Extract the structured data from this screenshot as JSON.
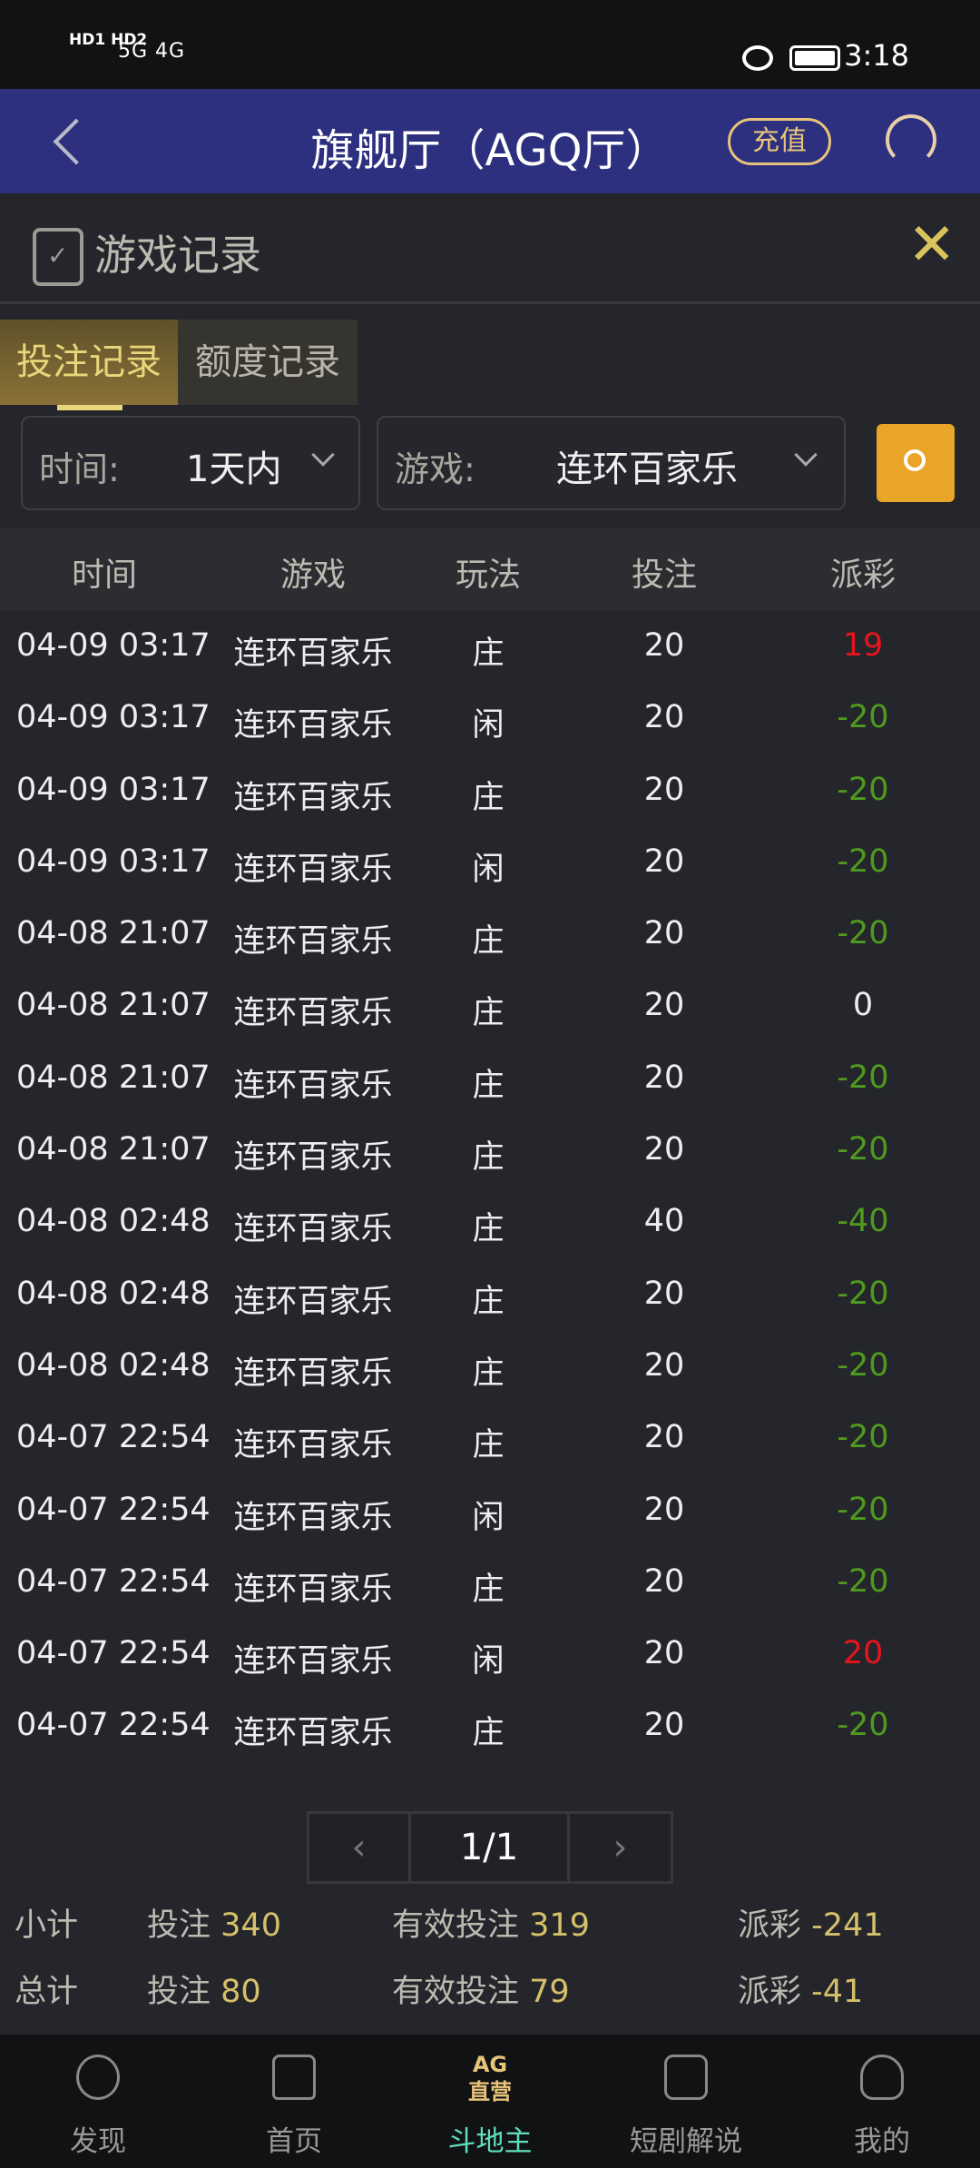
{
  "status_bar": {
    "signal_text": "HD1 HD2",
    "network": "5G 4G",
    "time": "3:18"
  },
  "header": {
    "title": "旗舰厅（AGQ厅）",
    "recharge_label": "充值",
    "icons": [
      "back-icon",
      "headset-icon"
    ]
  },
  "panel": {
    "title": "游戏记录",
    "close_icon": "close-icon"
  },
  "tabs": [
    {
      "label": "投注记录",
      "active": true
    },
    {
      "label": "额度记录",
      "active": false
    }
  ],
  "filters": {
    "time_label": "时间:",
    "time_value": "1天内",
    "game_label": "游戏:",
    "game_value": "连环百家乐"
  },
  "table": {
    "columns": [
      "时间",
      "游戏",
      "玩法",
      "投注",
      "派彩"
    ],
    "rows": [
      [
        "04-09 03:17",
        "连环百家乐",
        "庄",
        "20",
        "19"
      ],
      [
        "04-09 03:17",
        "连环百家乐",
        "闲",
        "20",
        "-20"
      ],
      [
        "04-09 03:17",
        "连环百家乐",
        "庄",
        "20",
        "-20"
      ],
      [
        "04-09 03:17",
        "连环百家乐",
        "闲",
        "20",
        "-20"
      ],
      [
        "04-08 21:07",
        "连环百家乐",
        "庄",
        "20",
        "-20"
      ],
      [
        "04-08 21:07",
        "连环百家乐",
        "庄",
        "20",
        "0"
      ],
      [
        "04-08 21:07",
        "连环百家乐",
        "庄",
        "20",
        "-20"
      ],
      [
        "04-08 21:07",
        "连环百家乐",
        "庄",
        "20",
        "-20"
      ],
      [
        "04-08 02:48",
        "连环百家乐",
        "庄",
        "40",
        "-40"
      ],
      [
        "04-08 02:48",
        "连环百家乐",
        "庄",
        "20",
        "-20"
      ],
      [
        "04-08 02:48",
        "连环百家乐",
        "庄",
        "20",
        "-20"
      ],
      [
        "04-07 22:54",
        "连环百家乐",
        "庄",
        "20",
        "-20"
      ],
      [
        "04-07 22:54",
        "连环百家乐",
        "闲",
        "20",
        "-20"
      ],
      [
        "04-07 22:54",
        "连环百家乐",
        "庄",
        "20",
        "-20"
      ],
      [
        "04-07 22:54",
        "连环百家乐",
        "闲",
        "20",
        "20"
      ],
      [
        "04-07 22:54",
        "连环百家乐",
        "庄",
        "20",
        "-20"
      ]
    ]
  },
  "pagination": {
    "prev": "‹",
    "page": "1/1",
    "next": "›"
  },
  "summary": {
    "subtotal": {
      "label": "小计",
      "bet_label": "投注",
      "bet": "340",
      "valid_label": "有效投注",
      "valid": "319",
      "payout_label": "派彩",
      "payout": "-241"
    },
    "total": {
      "label": "总计",
      "bet_label": "投注",
      "bet": "80",
      "valid_label": "有效投注",
      "valid": "79",
      "payout_label": "派彩",
      "payout": "-41"
    }
  },
  "nav": [
    {
      "label": "发现",
      "icon": "compass-icon",
      "active": false
    },
    {
      "label": "首页",
      "icon": "home-icon",
      "active": false
    },
    {
      "label": "斗地主",
      "icon": "ag-logo-icon",
      "logo_text": "AG 直营",
      "active": true
    },
    {
      "label": "短剧解说",
      "icon": "video-icon",
      "active": false
    },
    {
      "label": "我的",
      "icon": "user-icon",
      "active": false
    }
  ],
  "colors": {
    "header_bg": "#2d2f7f",
    "accent_gold": "#d6c06a",
    "win": "#e8141c",
    "loss": "#4f9a1f",
    "nav_active": "#5fe0b8",
    "search_btn": "#e9a528"
  }
}
